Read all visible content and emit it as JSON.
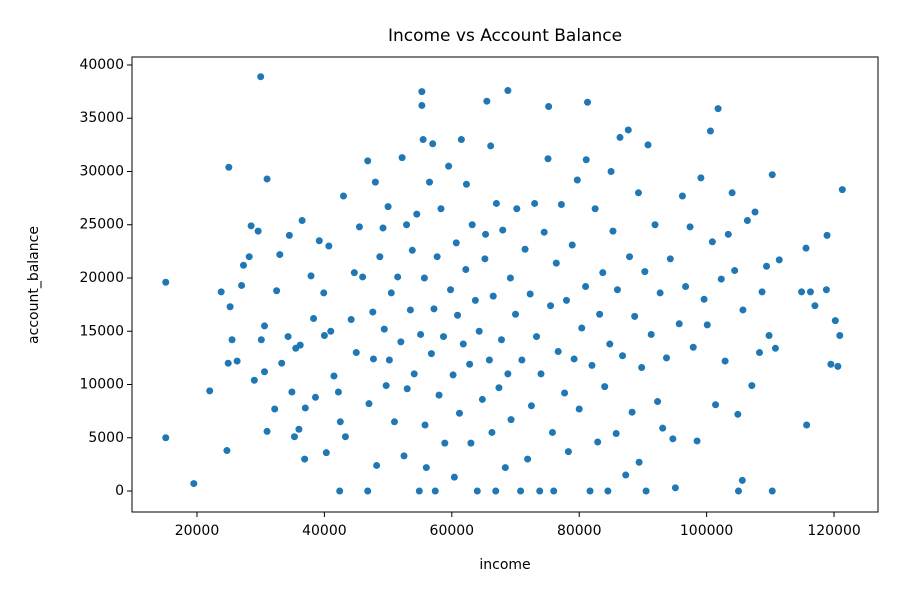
{
  "chart_data": {
    "type": "scatter",
    "title": "Income vs Account Balance",
    "x_label": "income",
    "y_label": "account_balance",
    "color": "#1f77b4",
    "grid": false,
    "xlim": [
      9800,
      126900
    ],
    "ylim": [
      -1970,
      40750
    ],
    "xticks": [
      20000,
      40000,
      60000,
      80000,
      100000,
      120000
    ],
    "yticks": [
      0,
      5000,
      10000,
      15000,
      20000,
      25000,
      30000,
      35000,
      40000
    ],
    "x": [
      15100,
      15100,
      19500,
      22000,
      24700,
      25000,
      25500,
      24900,
      23800,
      25200,
      26300,
      27300,
      27000,
      28500,
      28200,
      29000,
      29600,
      30000,
      30600,
      30100,
      31000,
      31000,
      30600,
      32500,
      32200,
      33000,
      33300,
      34500,
      34300,
      34900,
      35500,
      35300,
      36000,
      36500,
      36200,
      36900,
      37000,
      37900,
      38300,
      38600,
      39200,
      39900,
      40000,
      40300,
      40700,
      41000,
      41500,
      42500,
      42200,
      43000,
      43300,
      42400,
      44200,
      44700,
      45000,
      45500,
      46000,
      46800,
      46800,
      47000,
      47700,
      48000,
      47600,
      48200,
      48700,
      49200,
      49400,
      49700,
      50000,
      50200,
      50500,
      51000,
      51500,
      52000,
      52200,
      52500,
      52900,
      53000,
      53500,
      53800,
      54100,
      54500,
      54900,
      55100,
      55300,
      55300,
      55500,
      55700,
      55800,
      56000,
      56500,
      57000,
      56800,
      57200,
      57400,
      57700,
      58000,
      58300,
      58700,
      58900,
      59500,
      59800,
      60200,
      60400,
      60700,
      60900,
      61500,
      61200,
      61800,
      62200,
      62300,
      62800,
      63000,
      63200,
      63700,
      64000,
      64300,
      64800,
      65200,
      65500,
      65300,
      65900,
      66100,
      66300,
      66500,
      66900,
      67000,
      67400,
      67800,
      68000,
      68400,
      68800,
      68800,
      69200,
      69300,
      70000,
      70200,
      70800,
      71000,
      71500,
      71900,
      72300,
      72500,
      73000,
      73300,
      73800,
      74000,
      74500,
      75200,
      75100,
      75500,
      75800,
      76000,
      76400,
      76700,
      77200,
      77700,
      78000,
      78300,
      78900,
      79200,
      79700,
      80000,
      80400,
      81000,
      81300,
      81100,
      81700,
      82000,
      82500,
      82900,
      83200,
      83700,
      84000,
      84500,
      85000,
      84800,
      85300,
      85800,
      86000,
      86400,
      86800,
      87300,
      87700,
      87900,
      88300,
      88700,
      89300,
      89400,
      89800,
      90300,
      90800,
      90500,
      91300,
      91900,
      92300,
      92700,
      93100,
      93700,
      94300,
      94700,
      95100,
      95700,
      96200,
      96700,
      97400,
      97900,
      98500,
      99100,
      99600,
      100100,
      100600,
      100900,
      101400,
      101800,
      102300,
      102900,
      103400,
      104000,
      104400,
      104900,
      105000,
      105700,
      105600,
      106400,
      107100,
      107600,
      108300,
      108700,
      109400,
      109800,
      110300,
      110300,
      110800,
      111400,
      114900,
      115600,
      115700,
      116300,
      117000,
      118800,
      118900,
      119500,
      120200,
      120600,
      120900,
      121300
    ],
    "values": [
      19600,
      5000,
      700,
      9400,
      3800,
      30400,
      14200,
      12000,
      18700,
      17300,
      12200,
      21200,
      19300,
      24900,
      22000,
      10400,
      24400,
      38900,
      15500,
      14200,
      29300,
      5600,
      11200,
      18800,
      7700,
      22200,
      12000,
      24000,
      14500,
      9300,
      13400,
      5100,
      5800,
      25400,
      13700,
      3000,
      7800,
      20200,
      16200,
      8800,
      23500,
      18600,
      14600,
      3600,
      23000,
      15000,
      10800,
      6500,
      9300,
      27700,
      5100,
      0,
      16100,
      20500,
      13000,
      24800,
      20100,
      31000,
      0,
      8200,
      12400,
      29000,
      16800,
      2400,
      22000,
      24700,
      15200,
      9900,
      26700,
      12300,
      18600,
      6500,
      20100,
      14000,
      31300,
      3300,
      25000,
      9600,
      17000,
      22600,
      11000,
      26000,
      0,
      14700,
      37500,
      36200,
      33000,
      20000,
      6200,
      2200,
      29000,
      32600,
      12900,
      17100,
      0,
      22000,
      9000,
      26500,
      14500,
      4500,
      30500,
      18900,
      10900,
      1300,
      23300,
      16500,
      33000,
      7300,
      13800,
      20800,
      28800,
      11900,
      4500,
      25000,
      17900,
      0,
      15000,
      8600,
      21800,
      36600,
      24100,
      12300,
      32400,
      5500,
      18300,
      0,
      27000,
      9700,
      14200,
      24500,
      2200,
      37600,
      11000,
      20000,
      6700,
      16600,
      26500,
      0,
      12300,
      22700,
      3000,
      18500,
      8000,
      27000,
      14500,
      0,
      11000,
      24300,
      36100,
      31200,
      17400,
      5500,
      0,
      21400,
      13100,
      26900,
      9200,
      17900,
      3700,
      23100,
      12400,
      29200,
      7700,
      15300,
      19200,
      36500,
      31100,
      0,
      11800,
      26500,
      4600,
      16600,
      20500,
      9800,
      0,
      30000,
      13800,
      24400,
      5400,
      18900,
      33200,
      12700,
      1500,
      33900,
      22000,
      7400,
      16400,
      28000,
      2700,
      11600,
      20600,
      32500,
      0,
      14700,
      25000,
      8400,
      18600,
      5900,
      12500,
      21800,
      4900,
      300,
      15700,
      27700,
      19200,
      24800,
      13500,
      4700,
      29400,
      18000,
      15600,
      33800,
      23400,
      8100,
      35900,
      19900,
      12200,
      24100,
      28000,
      20700,
      7200,
      0,
      17000,
      1000,
      25400,
      9900,
      26200,
      13000,
      18700,
      21100,
      14600,
      29700,
      0,
      13400,
      21700,
      18700,
      22800,
      6200,
      18700,
      17400,
      18900,
      24000,
      11900,
      16000,
      11700,
      14600,
      28300
    ]
  }
}
